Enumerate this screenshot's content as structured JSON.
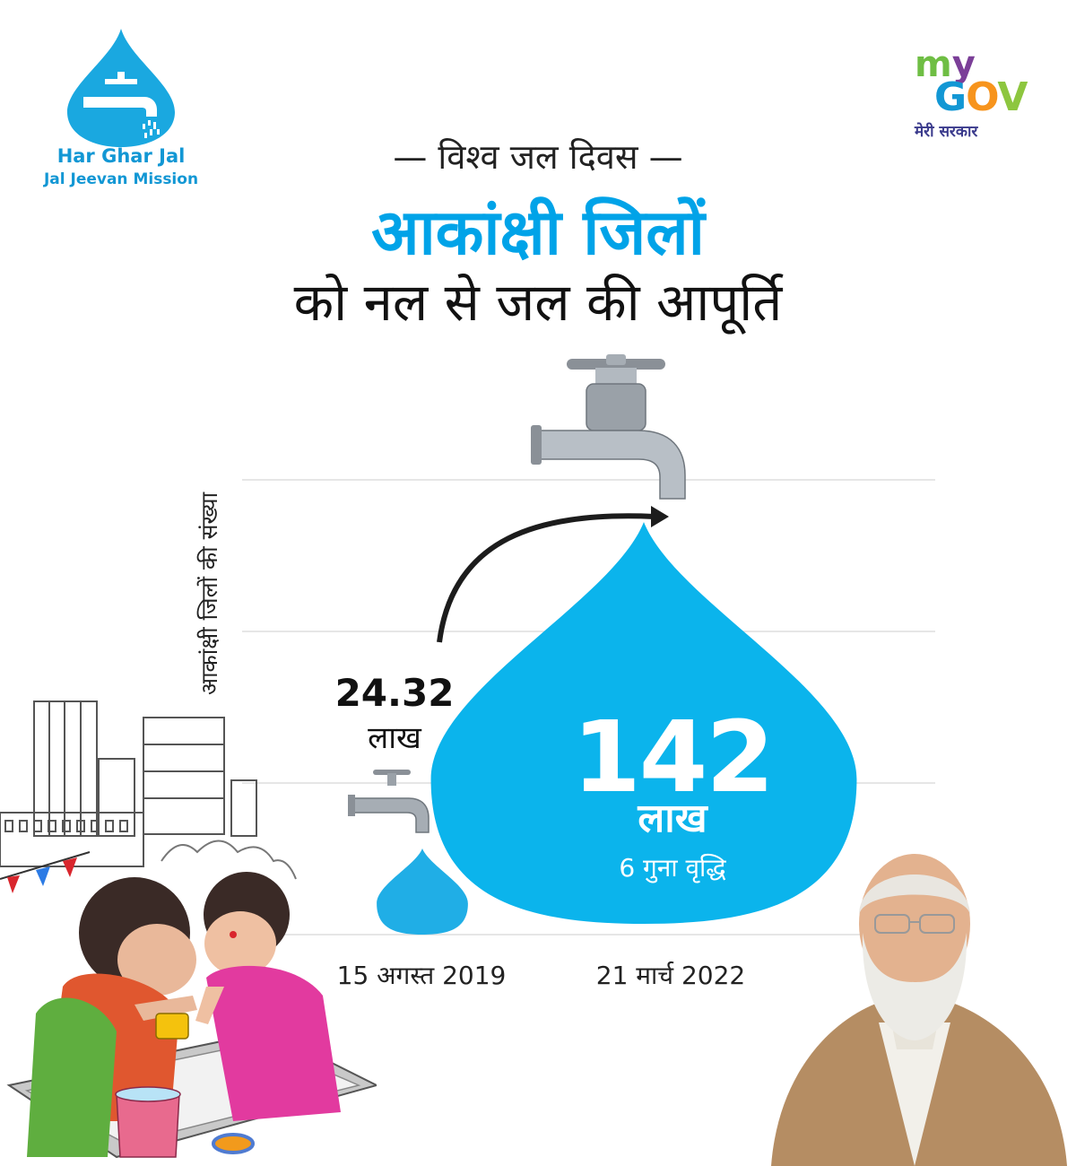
{
  "logos": {
    "left_line1": "Har Ghar Jal",
    "left_line2": "Jal Jeevan Mission",
    "right_my": "my",
    "right_gov": "GOV",
    "right_sub": "मेरी सरकार"
  },
  "heading": {
    "kicker": "— विश्व जल दिवस —",
    "main": "आकांक्षी जिलों",
    "sub": "को नल से जल की आपूर्ति"
  },
  "chart_data": {
    "type": "bar",
    "ylabel": "आकांक्षी जिलों की संख्या",
    "categories": [
      "15 अगस्त 2019",
      "21 मार्च 2022"
    ],
    "values": [
      24.32,
      142
    ],
    "value_labels": [
      {
        "number": "24.32",
        "unit": "लाख"
      },
      {
        "number": "142",
        "unit": "लाख",
        "note": "6 गुना वृद्धि"
      }
    ],
    "grid": true
  },
  "colors": {
    "accent": "#00a3e8",
    "drop": "#0bb4ec",
    "drop_small": "#20aee6"
  }
}
